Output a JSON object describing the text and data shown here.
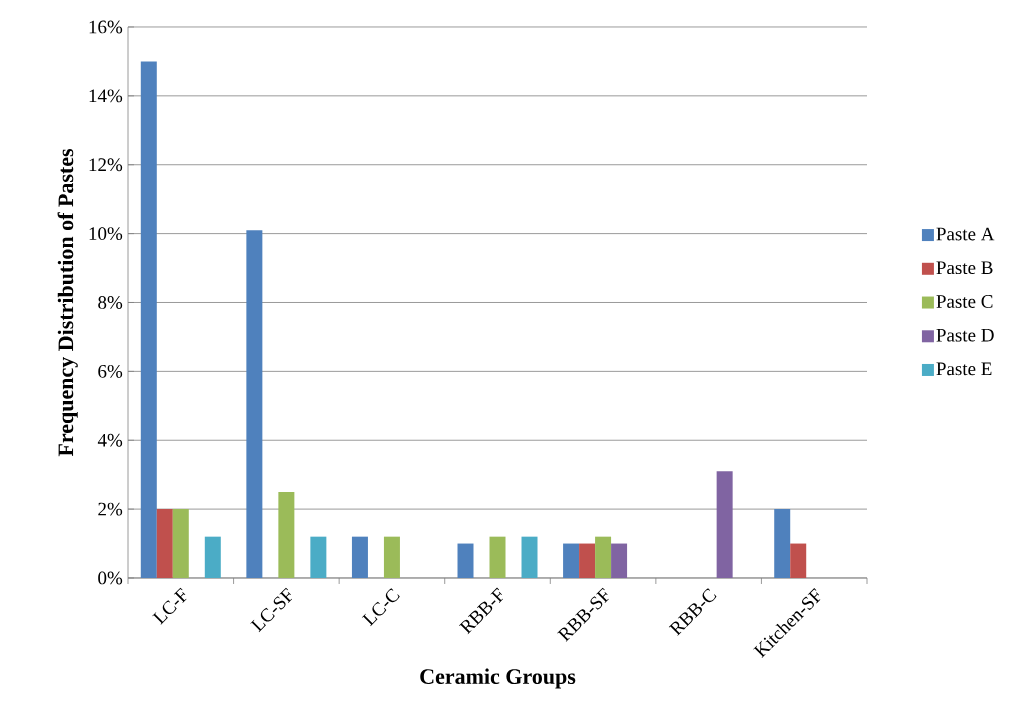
{
  "chart_data": {
    "type": "bar",
    "xlabel": "Ceramic Groups",
    "ylabel": "Frequency Distribution of Pastes",
    "categories": [
      "LC-F",
      "LC-SF",
      "LC-C",
      "RBB-F",
      "RBB-SF",
      "RBB-C",
      "Kitchen-SF"
    ],
    "series": [
      {
        "name": "Paste A",
        "color": "#4f81bd",
        "values": [
          15,
          10.1,
          1.2,
          1.0,
          1.0,
          null,
          2.0
        ]
      },
      {
        "name": "Paste B",
        "color": "#c0504d",
        "values": [
          2.0,
          null,
          null,
          null,
          1.0,
          null,
          1.0
        ]
      },
      {
        "name": "Paste C",
        "color": "#9bbb59",
        "values": [
          2.0,
          2.5,
          1.2,
          1.2,
          1.2,
          null,
          null
        ]
      },
      {
        "name": "Paste D",
        "color": "#8064a2",
        "values": [
          null,
          null,
          null,
          null,
          1.0,
          3.1,
          null
        ]
      },
      {
        "name": "Paste E",
        "color": "#4bacc6",
        "values": [
          1.2,
          1.2,
          null,
          1.2,
          null,
          null,
          null
        ]
      }
    ],
    "ylim": [
      0,
      16
    ],
    "yticks": [
      {
        "value": 0,
        "label": "0%"
      },
      {
        "value": 2,
        "label": "2%"
      },
      {
        "value": 4,
        "label": "4%"
      },
      {
        "value": 6,
        "label": "6%"
      },
      {
        "value": 8,
        "label": "8%"
      },
      {
        "value": 10,
        "label": "10%"
      },
      {
        "value": 12,
        "label": "12%"
      },
      {
        "value": 14,
        "label": "14%"
      },
      {
        "value": 16,
        "label": "16%"
      }
    ],
    "grid": "y",
    "legend": "right"
  }
}
